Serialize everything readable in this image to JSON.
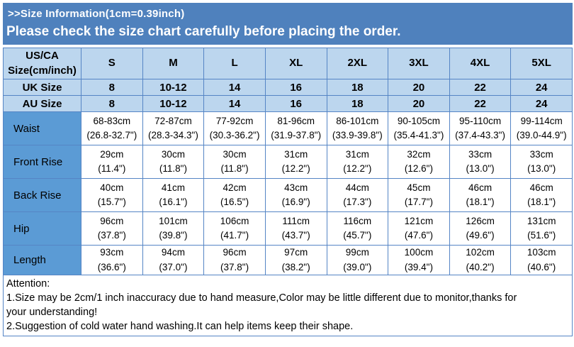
{
  "header": {
    "title": ">>Size Information(1cm=0.39inch)",
    "subtitle": "Please check the size chart carefully before placing the order."
  },
  "table": {
    "corner_header": "US/CA\nSize(cm/inch)",
    "size_columns": [
      "S",
      "M",
      "L",
      "XL",
      "2XL",
      "3XL",
      "4XL",
      "5XL"
    ],
    "rows": [
      {
        "label": "UK Size",
        "cells": [
          "8",
          "10-12",
          "14",
          "16",
          "18",
          "20",
          "22",
          "24"
        ]
      },
      {
        "label": "AU Size",
        "cells": [
          "8",
          "10-12",
          "14",
          "16",
          "18",
          "20",
          "22",
          "24"
        ]
      },
      {
        "label": "Waist",
        "cells": [
          "68-83cm\n(26.8-32.7\")",
          "72-87cm\n(28.3-34.3\")",
          "77-92cm\n(30.3-36.2\")",
          "81-96cm\n(31.9-37.8\")",
          "86-101cm\n(33.9-39.8\")",
          "90-105cm\n(35.4-41.3\")",
          "95-110cm\n(37.4-43.3\")",
          "99-114cm\n(39.0-44.9\")"
        ]
      },
      {
        "label": "Front Rise",
        "cells": [
          "29cm\n(11.4\")",
          "30cm\n(11.8\")",
          "30cm\n(11.8\")",
          "31cm\n(12.2\")",
          "31cm\n(12.2\")",
          "32cm\n(12.6\")",
          "33cm\n(13.0\")",
          "33cm\n(13.0\")"
        ]
      },
      {
        "label": "Back Rise",
        "cells": [
          "40cm\n(15.7\")",
          "41cm\n(16.1\")",
          "42cm\n(16.5\")",
          "43cm\n(16.9\")",
          "44cm\n(17.3\")",
          "45cm\n(17.7\")",
          "46cm\n(18.1\")",
          "46cm\n(18.1\")"
        ]
      },
      {
        "label": "Hip",
        "cells": [
          "96cm\n(37.8\")",
          "101cm\n(39.8\")",
          "106cm\n(41.7\")",
          "111cm\n(43.7\")",
          "116cm\n(45.7\")",
          "121cm\n(47.6\")",
          "126cm\n(49.6\")",
          "131cm\n(51.6\")"
        ]
      },
      {
        "label": "Length",
        "cells": [
          "93cm\n(36.6\")",
          "94cm\n(37.0\")",
          "96cm\n(37.8\")",
          "97cm\n(38.2\")",
          "99cm\n(39.0\")",
          "100cm\n(39.4\")",
          "102cm\n(40.2\")",
          "103cm\n(40.6\")"
        ]
      }
    ]
  },
  "attention": {
    "title": "Attention:",
    "notes": [
      "1.Size may be 2cm/1 inch inaccuracy due to hand measure,Color may be little different due to monitor,thanks for\nyour understanding!",
      "2.Suggestion of cold water hand washing.It can help items keep their shape."
    ]
  },
  "colors": {
    "band_blue": "#4f81bd",
    "header_light_blue": "#bcd6ee",
    "label_blue": "#5b9bd5",
    "grid_border_blue": "#5585c5",
    "text_black": "#000000",
    "title_white": "#ffffff"
  }
}
